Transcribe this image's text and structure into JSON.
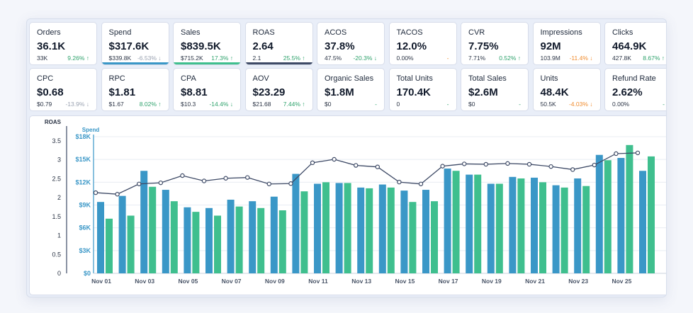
{
  "cards": [
    {
      "label": "Orders",
      "value": "36.1K",
      "prev": "33K",
      "change": "9.26% ↑",
      "trend": "up",
      "accent": ""
    },
    {
      "label": "Spend",
      "value": "$317.6K",
      "prev": "$339.8K",
      "change": "-6.53% ↓",
      "trend": "down",
      "accent": "#3a97c7"
    },
    {
      "label": "Sales",
      "value": "$839.5K",
      "prev": "$715.2K",
      "change": "17.3% ↑",
      "trend": "up",
      "accent": "#3fbf8e"
    },
    {
      "label": "ROAS",
      "value": "2.64",
      "prev": "2.1",
      "change": "25.5% ↑",
      "trend": "up",
      "accent": "#3e4a66"
    },
    {
      "label": "ACOS",
      "value": "37.8%",
      "prev": "47.5%",
      "change": "-20.3% ↓",
      "trend": "down2",
      "accent": ""
    },
    {
      "label": "TACOS",
      "value": "12.0%",
      "prev": "0.00%",
      "change": "-",
      "trend": "orange",
      "accent": ""
    },
    {
      "label": "CVR",
      "value": "7.75%",
      "prev": "7.71%",
      "change": "0.52% ↑",
      "trend": "up",
      "accent": ""
    },
    {
      "label": "Impressions",
      "value": "92M",
      "prev": "103.9M",
      "change": "-11.4% ↓",
      "trend": "orange",
      "accent": ""
    },
    {
      "label": "Clicks",
      "value": "464.9K",
      "prev": "427.8K",
      "change": "8.67% ↑",
      "trend": "up",
      "accent": ""
    },
    {
      "label": "CPC",
      "value": "$0.68",
      "prev": "$0.79",
      "change": "-13.9% ↓",
      "trend": "down",
      "accent": ""
    },
    {
      "label": "RPC",
      "value": "$1.81",
      "prev": "$1.67",
      "change": "8.02% ↑",
      "trend": "up",
      "accent": ""
    },
    {
      "label": "CPA",
      "value": "$8.81",
      "prev": "$10.3",
      "change": "-14.4% ↓",
      "trend": "down2",
      "accent": ""
    },
    {
      "label": "AOV",
      "value": "$23.29",
      "prev": "$21.68",
      "change": "7.44% ↑",
      "trend": "up",
      "accent": ""
    },
    {
      "label": "Organic Sales",
      "value": "$1.8M",
      "prev": "$0",
      "change": "-",
      "trend": "up",
      "accent": ""
    },
    {
      "label": "Total Units",
      "value": "170.4K",
      "prev": "0",
      "change": "-",
      "trend": "up",
      "accent": ""
    },
    {
      "label": "Total Sales",
      "value": "$2.6M",
      "prev": "$0",
      "change": "-",
      "trend": "up",
      "accent": ""
    },
    {
      "label": "Units",
      "value": "48.4K",
      "prev": "50.5K",
      "change": "-4.03% ↓",
      "trend": "orange",
      "accent": ""
    },
    {
      "label": "Refund Rate",
      "value": "2.62%",
      "prev": "0.00%",
      "change": "-",
      "trend": "up",
      "accent": ""
    }
  ],
  "colors": {
    "spend": "#3a97c7",
    "sales": "#3fbf8e",
    "roas": "#3e4a66",
    "grid": "#e8ecf3",
    "axis": "#3e4a66"
  },
  "chart_data": {
    "type": "bar",
    "left_axis": {
      "title": "ROAS",
      "ticks": [
        "0",
        "0.5",
        "1",
        "1.5",
        "2",
        "2.5",
        "3",
        "3.5"
      ],
      "ylim": [
        0,
        3.5
      ]
    },
    "right_axis": {
      "title": "Spend",
      "ticks": [
        "$0",
        "$3K",
        "$6K",
        "$9K",
        "$12K",
        "$15K",
        "$18K"
      ],
      "ylim": [
        0,
        18000
      ]
    },
    "x_tick_labels": [
      "Nov 01",
      "Nov 03",
      "Nov 05",
      "Nov 07",
      "Nov 09",
      "Nov 11",
      "Nov 13",
      "Nov 15",
      "Nov 17",
      "Nov 19",
      "Nov 21",
      "Nov 23",
      "Nov 25"
    ],
    "categories": [
      "Nov 01",
      "Nov 02",
      "Nov 03",
      "Nov 04",
      "Nov 05",
      "Nov 06",
      "Nov 07",
      "Nov 08",
      "Nov 09",
      "Nov 10",
      "Nov 11",
      "Nov 12",
      "Nov 13",
      "Nov 14",
      "Nov 15",
      "Nov 16",
      "Nov 17",
      "Nov 18",
      "Nov 19",
      "Nov 20",
      "Nov 21",
      "Nov 22",
      "Nov 23",
      "Nov 24",
      "Nov 25",
      "Nov 26"
    ],
    "series": [
      {
        "key": "spend",
        "values": [
          9400,
          10200,
          13500,
          11000,
          8700,
          8600,
          9700,
          9500,
          10100,
          13100,
          11800,
          11900,
          11300,
          11700,
          10900,
          11000,
          13800,
          13000,
          11800,
          12700,
          12600,
          11600,
          12500,
          15600,
          15200,
          13500
        ]
      },
      {
        "key": "sales",
        "values": [
          7200,
          7600,
          11400,
          9500,
          8100,
          7600,
          8800,
          8600,
          8300,
          10800,
          12000,
          11900,
          11200,
          11300,
          9400,
          9500,
          13500,
          13000,
          11800,
          12500,
          12000,
          11300,
          11500,
          14900,
          16900,
          15400
        ]
      },
      {
        "key": "roas",
        "values": [
          2.13,
          2.09,
          2.36,
          2.39,
          2.58,
          2.44,
          2.51,
          2.53,
          2.36,
          2.37,
          2.92,
          3.01,
          2.85,
          2.81,
          2.41,
          2.36,
          2.83,
          2.89,
          2.88,
          2.9,
          2.88,
          2.82,
          2.74,
          2.86,
          3.16,
          3.18
        ]
      }
    ],
    "grid": true
  }
}
